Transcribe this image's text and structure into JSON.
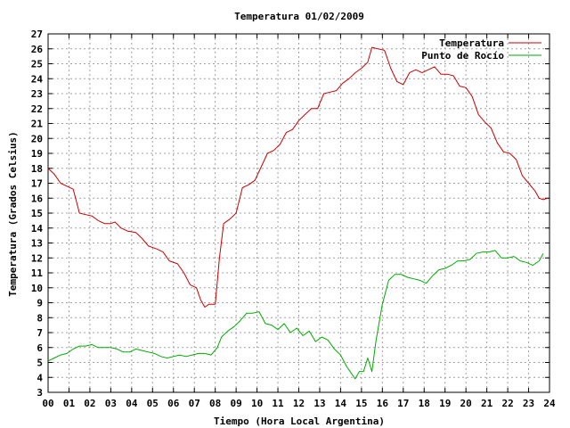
{
  "chart_data": {
    "type": "line",
    "title": "Temperatura 01/02/2009",
    "xlabel": "Tiempo (Hora Local Argentina)",
    "ylabel": "Temperatura (Grados Celsius)",
    "xlim": [
      0,
      24
    ],
    "ylim": [
      3,
      27
    ],
    "x_ticks": [
      "00",
      "01",
      "02",
      "03",
      "04",
      "05",
      "06",
      "07",
      "08",
      "09",
      "10",
      "11",
      "12",
      "13",
      "14",
      "15",
      "16",
      "17",
      "18",
      "19",
      "20",
      "21",
      "22",
      "23",
      "24"
    ],
    "y_ticks": [
      "3",
      "4",
      "5",
      "6",
      "7",
      "8",
      "9",
      "10",
      "11",
      "12",
      "13",
      "14",
      "15",
      "16",
      "17",
      "18",
      "19",
      "20",
      "21",
      "22",
      "23",
      "24",
      "25",
      "26",
      "27"
    ],
    "grid": true,
    "legend_position": "top-right",
    "series": [
      {
        "name": "Temperatura",
        "color": "#cc0000",
        "points": [
          [
            0.0,
            18.0
          ],
          [
            0.3,
            17.6
          ],
          [
            0.6,
            17.0
          ],
          [
            0.9,
            16.8
          ],
          [
            1.2,
            16.6
          ],
          [
            1.5,
            15.0
          ],
          [
            1.8,
            14.9
          ],
          [
            2.1,
            14.8
          ],
          [
            2.4,
            14.5
          ],
          [
            2.7,
            14.3
          ],
          [
            3.0,
            14.3
          ],
          [
            3.2,
            14.4
          ],
          [
            3.5,
            14.0
          ],
          [
            3.8,
            13.8
          ],
          [
            4.2,
            13.7
          ],
          [
            4.5,
            13.3
          ],
          [
            4.8,
            12.8
          ],
          [
            5.2,
            12.6
          ],
          [
            5.5,
            12.4
          ],
          [
            5.8,
            11.8
          ],
          [
            6.2,
            11.6
          ],
          [
            6.5,
            11.0
          ],
          [
            6.8,
            10.2
          ],
          [
            7.1,
            10.0
          ],
          [
            7.3,
            9.2
          ],
          [
            7.5,
            8.7
          ],
          [
            7.7,
            8.9
          ],
          [
            8.0,
            8.9
          ],
          [
            8.2,
            12.0
          ],
          [
            8.4,
            14.3
          ],
          [
            8.7,
            14.6
          ],
          [
            9.0,
            15.0
          ],
          [
            9.3,
            16.7
          ],
          [
            9.6,
            16.9
          ],
          [
            9.9,
            17.2
          ],
          [
            10.2,
            18.1
          ],
          [
            10.5,
            19.0
          ],
          [
            10.8,
            19.2
          ],
          [
            11.1,
            19.6
          ],
          [
            11.4,
            20.4
          ],
          [
            11.7,
            20.6
          ],
          [
            12.0,
            21.2
          ],
          [
            12.3,
            21.6
          ],
          [
            12.6,
            22.0
          ],
          [
            12.9,
            22.0
          ],
          [
            13.2,
            23.0
          ],
          [
            13.5,
            23.1
          ],
          [
            13.8,
            23.2
          ],
          [
            14.1,
            23.7
          ],
          [
            14.4,
            24.0
          ],
          [
            14.7,
            24.4
          ],
          [
            15.0,
            24.7
          ],
          [
            15.3,
            25.1
          ],
          [
            15.5,
            26.1
          ],
          [
            15.8,
            26.0
          ],
          [
            16.1,
            25.9
          ],
          [
            16.4,
            24.7
          ],
          [
            16.7,
            23.8
          ],
          [
            17.0,
            23.6
          ],
          [
            17.3,
            24.4
          ],
          [
            17.6,
            24.6
          ],
          [
            17.9,
            24.4
          ],
          [
            18.2,
            24.6
          ],
          [
            18.5,
            24.8
          ],
          [
            18.8,
            24.3
          ],
          [
            19.1,
            24.3
          ],
          [
            19.4,
            24.2
          ],
          [
            19.7,
            23.5
          ],
          [
            20.0,
            23.4
          ],
          [
            20.3,
            22.8
          ],
          [
            20.6,
            21.6
          ],
          [
            20.9,
            21.1
          ],
          [
            21.2,
            20.7
          ],
          [
            21.5,
            19.7
          ],
          [
            21.8,
            19.1
          ],
          [
            22.1,
            19.0
          ],
          [
            22.4,
            18.6
          ],
          [
            22.7,
            17.5
          ],
          [
            23.0,
            17.0
          ],
          [
            23.3,
            16.5
          ],
          [
            23.5,
            16.0
          ],
          [
            23.7,
            15.9
          ],
          [
            23.9,
            16.0
          ]
        ]
      },
      {
        "name": "Punto de Rocío",
        "color": "#00aa00",
        "points": [
          [
            0.0,
            5.1
          ],
          [
            0.3,
            5.3
          ],
          [
            0.6,
            5.5
          ],
          [
            0.9,
            5.6
          ],
          [
            1.2,
            5.9
          ],
          [
            1.5,
            6.1
          ],
          [
            1.8,
            6.1
          ],
          [
            2.1,
            6.2
          ],
          [
            2.4,
            6.0
          ],
          [
            2.7,
            6.0
          ],
          [
            3.0,
            6.0
          ],
          [
            3.3,
            5.9
          ],
          [
            3.6,
            5.7
          ],
          [
            3.9,
            5.7
          ],
          [
            4.2,
            5.9
          ],
          [
            4.5,
            5.8
          ],
          [
            4.8,
            5.7
          ],
          [
            5.1,
            5.6
          ],
          [
            5.4,
            5.4
          ],
          [
            5.7,
            5.3
          ],
          [
            6.0,
            5.4
          ],
          [
            6.3,
            5.5
          ],
          [
            6.6,
            5.4
          ],
          [
            6.9,
            5.5
          ],
          [
            7.2,
            5.6
          ],
          [
            7.5,
            5.6
          ],
          [
            7.8,
            5.5
          ],
          [
            8.1,
            6.0
          ],
          [
            8.3,
            6.7
          ],
          [
            8.6,
            7.1
          ],
          [
            8.9,
            7.4
          ],
          [
            9.2,
            7.8
          ],
          [
            9.5,
            8.3
          ],
          [
            9.8,
            8.3
          ],
          [
            10.1,
            8.4
          ],
          [
            10.4,
            7.6
          ],
          [
            10.7,
            7.5
          ],
          [
            11.0,
            7.2
          ],
          [
            11.3,
            7.6
          ],
          [
            11.6,
            7.0
          ],
          [
            11.9,
            7.3
          ],
          [
            12.2,
            6.8
          ],
          [
            12.5,
            7.1
          ],
          [
            12.8,
            6.4
          ],
          [
            13.1,
            6.7
          ],
          [
            13.4,
            6.5
          ],
          [
            13.7,
            5.9
          ],
          [
            14.0,
            5.5
          ],
          [
            14.3,
            4.7
          ],
          [
            14.5,
            4.3
          ],
          [
            14.7,
            3.9
          ],
          [
            14.9,
            4.4
          ],
          [
            15.1,
            4.4
          ],
          [
            15.3,
            5.3
          ],
          [
            15.5,
            4.4
          ],
          [
            15.7,
            6.5
          ],
          [
            16.0,
            8.9
          ],
          [
            16.3,
            10.5
          ],
          [
            16.6,
            10.9
          ],
          [
            16.9,
            10.9
          ],
          [
            17.2,
            10.7
          ],
          [
            17.5,
            10.6
          ],
          [
            17.8,
            10.5
          ],
          [
            18.1,
            10.3
          ],
          [
            18.4,
            10.8
          ],
          [
            18.7,
            11.2
          ],
          [
            19.0,
            11.3
          ],
          [
            19.3,
            11.5
          ],
          [
            19.6,
            11.8
          ],
          [
            19.9,
            11.8
          ],
          [
            20.2,
            11.9
          ],
          [
            20.5,
            12.3
          ],
          [
            20.8,
            12.4
          ],
          [
            21.1,
            12.4
          ],
          [
            21.4,
            12.5
          ],
          [
            21.7,
            12.0
          ],
          [
            22.0,
            12.0
          ],
          [
            22.3,
            12.1
          ],
          [
            22.6,
            11.8
          ],
          [
            22.9,
            11.7
          ],
          [
            23.2,
            11.5
          ],
          [
            23.5,
            11.8
          ],
          [
            23.7,
            12.3
          ]
        ]
      }
    ]
  }
}
